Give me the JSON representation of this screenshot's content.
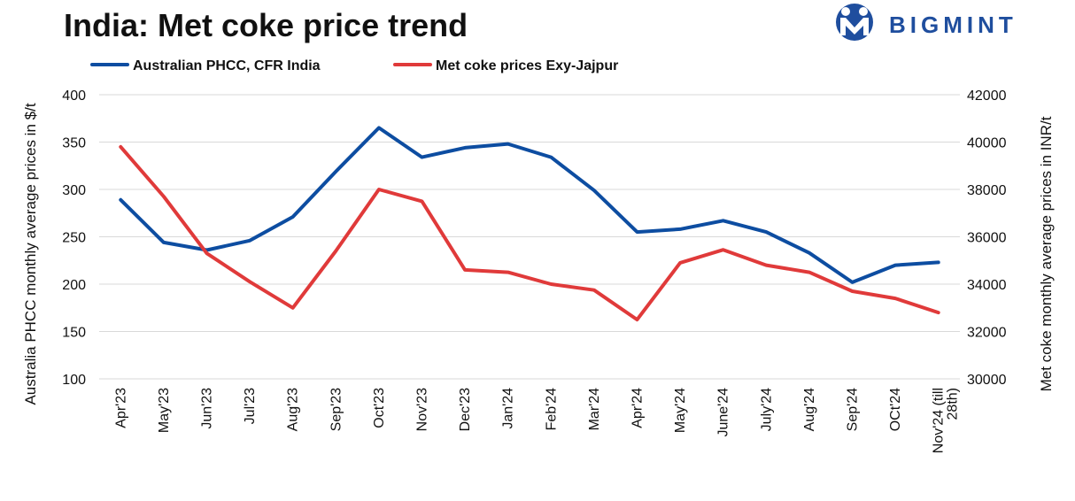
{
  "title": "India: Met coke price trend",
  "brand": {
    "name": "BIGMINT",
    "color": "#1f4e9e",
    "logo_letter": "M"
  },
  "chart_data": {
    "type": "line",
    "title": "India: Met coke price trend",
    "categories": [
      "Apr'23",
      "May'23",
      "Jun'23",
      "Jul'23",
      "Aug'23",
      "Sep'23",
      "Oct'23",
      "Nov'23",
      "Dec'23",
      "Jan'24",
      "Feb'24",
      "Mar'24",
      "Apr'24",
      "May'24",
      "June'24",
      "July'24",
      "Aug'24",
      "Sep'24",
      "OCt'24",
      "Nov'24 (till 28th)"
    ],
    "category_lines": [
      [
        "Apr'23"
      ],
      [
        "May'23"
      ],
      [
        "Jun'23"
      ],
      [
        "Jul'23"
      ],
      [
        "Aug'23"
      ],
      [
        "Sep'23"
      ],
      [
        "Oct'23"
      ],
      [
        "Nov'23"
      ],
      [
        "Dec'23"
      ],
      [
        "Jan'24"
      ],
      [
        "Feb'24"
      ],
      [
        "Mar'24"
      ],
      [
        "Apr'24"
      ],
      [
        "May'24"
      ],
      [
        "June'24"
      ],
      [
        "July'24"
      ],
      [
        "Aug'24"
      ],
      [
        "Sep'24"
      ],
      [
        "OCt'24"
      ],
      [
        "Nov'24 (till",
        "28th)"
      ]
    ],
    "series": [
      {
        "name": "Australian PHCC, CFR India",
        "axis": "left",
        "color": "#0d4da1",
        "values": [
          289,
          244,
          236,
          246,
          271,
          319,
          365,
          334,
          344,
          348,
          334,
          299,
          255,
          258,
          267,
          255,
          233,
          202,
          220,
          223
        ]
      },
      {
        "name": "Met coke prices Exy-Jajpur",
        "axis": "right",
        "color": "#e03a3a",
        "values": [
          39800,
          37700,
          35300,
          34100,
          33000,
          35400,
          38000,
          37500,
          34600,
          34500,
          34000,
          33750,
          32500,
          34900,
          35450,
          34800,
          34500,
          33700,
          33400,
          32800
        ]
      }
    ],
    "y_left": {
      "label": "Australia PHCC monthly average prices in $/t",
      "range": [
        100,
        400
      ],
      "ticks": [
        100,
        150,
        200,
        250,
        300,
        350,
        400
      ]
    },
    "y_right": {
      "label": "Met coke monthly average prices in INR/t",
      "range": [
        30000,
        42000
      ],
      "ticks": [
        30000,
        32000,
        34000,
        36000,
        38000,
        40000,
        42000
      ]
    },
    "grid": true,
    "legend_position": "top-left"
  }
}
